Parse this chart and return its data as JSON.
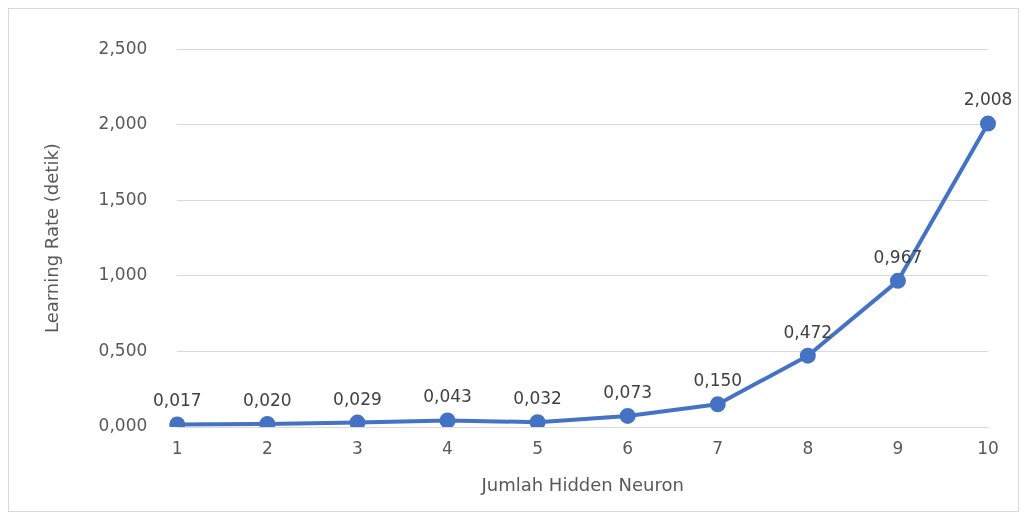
{
  "chart_data": {
    "type": "line",
    "xlabel": "Jumlah Hidden Neuron",
    "ylabel": "Learning Rate (detik)",
    "categories": [
      "1",
      "2",
      "3",
      "4",
      "5",
      "6",
      "7",
      "8",
      "9",
      "10"
    ],
    "series": [
      {
        "color": "#4472c4",
        "values": [
          0.017,
          0.02,
          0.029,
          0.043,
          0.032,
          0.073,
          0.15,
          0.472,
          0.967,
          2.008
        ],
        "value_labels": [
          "0,017",
          "0,020",
          "0,029",
          "0,043",
          "0,032",
          "0,073",
          "0,150",
          "0,472",
          "0,967",
          "2,008"
        ]
      }
    ],
    "ylim": [
      0,
      2.5
    ],
    "yticks": [
      {
        "value": 0,
        "label": "0,000"
      },
      {
        "value": 0.5,
        "label": "0,500"
      },
      {
        "value": 1,
        "label": "1,000"
      },
      {
        "value": 1.5,
        "label": "1,500"
      },
      {
        "value": 2,
        "label": "2,000"
      },
      {
        "value": 2.5,
        "label": "2,500"
      }
    ],
    "grid": "y",
    "legend": false,
    "marker": "circle",
    "line_style": "solid"
  }
}
